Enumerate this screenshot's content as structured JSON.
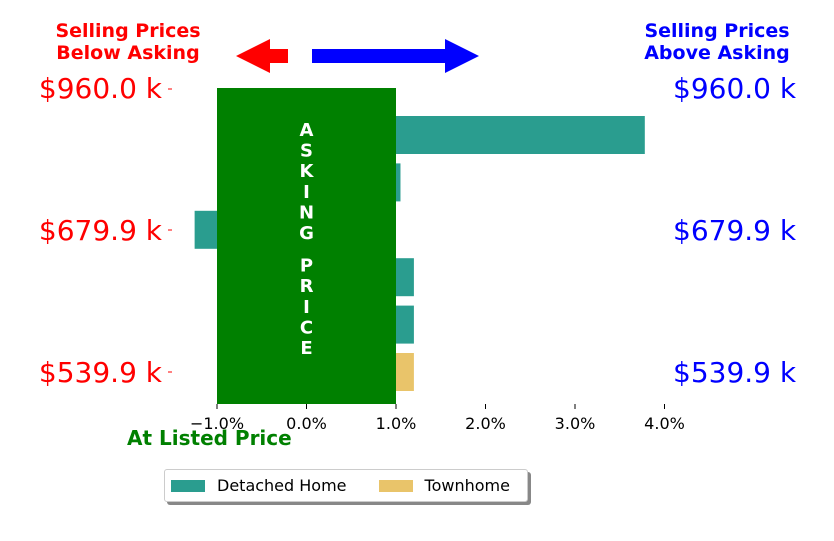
{
  "header": {
    "left_label": "Selling Prices\nBelow Asking",
    "right_label": "Selling Prices\nAbove Asking",
    "left_color": "#ff0000",
    "right_color": "#0000ff"
  },
  "price_labels": {
    "left": [
      "$960.0 k",
      "$679.9 k",
      "$539.9 k"
    ],
    "right": [
      "$960.0 k",
      "$679.9 k",
      "$539.9 k"
    ]
  },
  "asking_band": {
    "label": "ASKING PRICE",
    "color": "#008000"
  },
  "at_listed_label": "At Listed Price",
  "at_listed_color": "#008000",
  "legend": [
    {
      "label": "Detached Home",
      "color": "#2a9d8f"
    },
    {
      "label": "Townhome",
      "color": "#e9c46a"
    }
  ],
  "chart_data": {
    "type": "bar",
    "orientation": "horizontal",
    "x_ticks": [
      "−1.0%",
      "0.0%",
      "1.0%",
      "2.0%",
      "3.0%",
      "4.0%"
    ],
    "x_tick_values": [
      -1,
      0,
      1,
      2,
      3,
      4
    ],
    "xlim": [
      -1.25,
      4.0
    ],
    "bars": [
      {
        "value": 3.78,
        "series": "Detached Home"
      },
      {
        "value": 1.05,
        "series": "Detached Home"
      },
      {
        "value": -1.25,
        "series": "Detached Home"
      },
      {
        "value": 1.2,
        "series": "Detached Home"
      },
      {
        "value": 1.2,
        "series": "Detached Home"
      },
      {
        "value": 1.2,
        "series": "Townhome"
      }
    ],
    "asking_band_range": [
      -1.0,
      1.0
    ],
    "grid": false,
    "legend_position": "bottom"
  }
}
